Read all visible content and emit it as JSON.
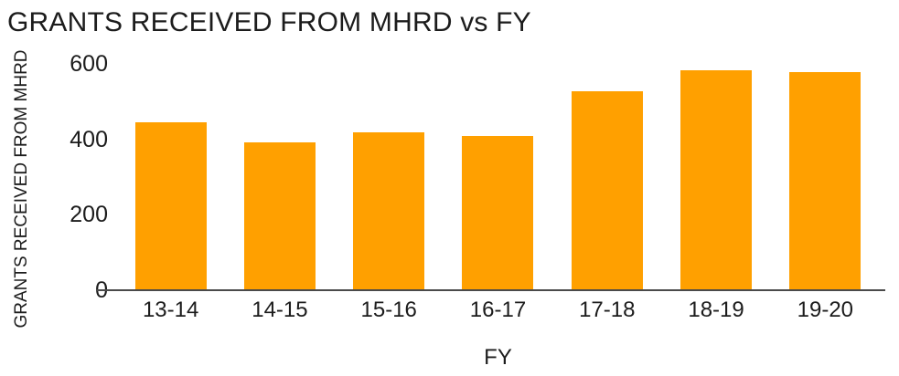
{
  "chart_data": {
    "type": "bar",
    "title": "GRANTS RECEIVED FROM MHRD vs FY",
    "xlabel": "FY",
    "ylabel": "GRANTS RECEIVED FROM MHRD",
    "categories": [
      "13-14",
      "14-15",
      "15-16",
      "16-17",
      "17-18",
      "18-19",
      "19-20"
    ],
    "values": [
      443,
      389,
      417,
      406,
      526,
      580,
      575
    ],
    "yticks": [
      0,
      200,
      400,
      600
    ],
    "ylim": [
      0,
      600
    ],
    "grid": false,
    "legend": "none",
    "bar_color": "#FFA000",
    "axis_line_color": "#4a4a4a",
    "text_color": "#1c1c1c",
    "background_color": "#ffffff"
  }
}
